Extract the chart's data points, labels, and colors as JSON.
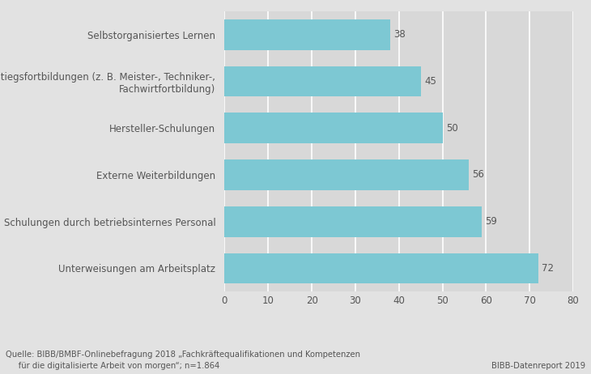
{
  "categories": [
    "Unterweisungen am Arbeitsplatz",
    "Schulungen durch betriebsinternes Personal",
    "Externe Weiterbildungen",
    "Hersteller-Schulungen",
    "Aufstiegsfortbildungen (z. B. Meister-, Techniker-,\nFachwirtfortbildung)",
    "Selbstorganisiertes Lernen"
  ],
  "values": [
    72,
    59,
    56,
    50,
    45,
    38
  ],
  "bar_color": "#7dc8d3",
  "outer_bg_color": "#e2e2e2",
  "plot_bg_color": "#d8d8d8",
  "label_area_bg": "#e8e8e8",
  "text_color": "#555555",
  "value_label_color": "#555555",
  "grid_color": "#ffffff",
  "xlim": [
    0,
    80
  ],
  "xticks": [
    0,
    10,
    20,
    30,
    40,
    50,
    60,
    70,
    80
  ],
  "bar_height": 0.65,
  "fontsize_labels": 8.5,
  "fontsize_values": 8.5,
  "fontsize_ticks": 8.5,
  "fontsize_source": 7.2,
  "source_text": "Quelle: BIBB/BMBF-Onlinebefragung 2018 „Fachkräftequalifikationen und Kompetenzen\n     für die digitalisierte Arbeit von morgen“; n=1.864",
  "source_right": "BIBB-Datenreport 2019"
}
